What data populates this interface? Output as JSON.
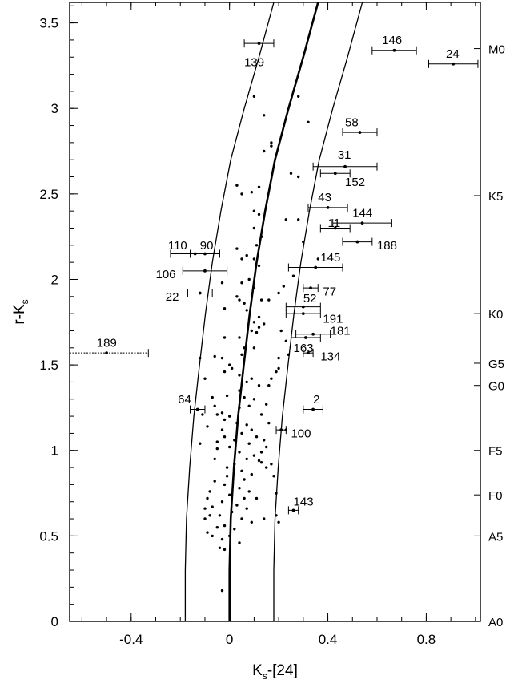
{
  "chart_data": {
    "type": "scatter",
    "xlabel": {
      "main": "K",
      "sub": "s",
      "rest": "-[24]"
    },
    "ylabel": {
      "main": "r-K",
      "sub": "s"
    },
    "xlim": [
      -0.65,
      1.02
    ],
    "ylim": [
      0,
      3.62
    ],
    "x_ticks": [
      -0.4,
      0,
      0.4,
      0.8
    ],
    "x_tick_labels": [
      "-0.4",
      "0",
      "0.4",
      "0.8"
    ],
    "y_ticks": [
      0,
      0.5,
      1,
      1.5,
      2,
      2.5,
      3,
      3.5
    ],
    "y_tick_labels": [
      "0",
      "0.5",
      "1",
      "1.5",
      "2",
      "2.5",
      "3",
      "3.5"
    ],
    "spectral_types": [
      {
        "label": "A0",
        "y": 0.0
      },
      {
        "label": "A5",
        "y": 0.5
      },
      {
        "label": "F0",
        "y": 0.74
      },
      {
        "label": "F5",
        "y": 1.0
      },
      {
        "label": "G0",
        "y": 1.38
      },
      {
        "label": "G5",
        "y": 1.51
      },
      {
        "label": "K0",
        "y": 1.8
      },
      {
        "label": "K5",
        "y": 2.49
      },
      {
        "label": "M0",
        "y": 3.35
      }
    ],
    "main_curve": [
      [
        0.0,
        0
      ],
      [
        0.0,
        0.3
      ],
      [
        0.005,
        0.6
      ],
      [
        0.018,
        0.9
      ],
      [
        0.035,
        1.2
      ],
      [
        0.058,
        1.5
      ],
      [
        0.082,
        1.8
      ],
      [
        0.11,
        2.1
      ],
      [
        0.145,
        2.4
      ],
      [
        0.185,
        2.7
      ],
      [
        0.24,
        3.0
      ],
      [
        0.3,
        3.3
      ],
      [
        0.36,
        3.62
      ]
    ],
    "left_curve": [
      [
        -0.18,
        0
      ],
      [
        -0.18,
        0.3
      ],
      [
        -0.175,
        0.6
      ],
      [
        -0.162,
        0.9
      ],
      [
        -0.145,
        1.2
      ],
      [
        -0.122,
        1.5
      ],
      [
        -0.098,
        1.8
      ],
      [
        -0.07,
        2.1
      ],
      [
        -0.035,
        2.4
      ],
      [
        0.005,
        2.7
      ],
      [
        0.06,
        3.0
      ],
      [
        0.12,
        3.3
      ],
      [
        0.18,
        3.62
      ]
    ],
    "right_curve": [
      [
        0.18,
        0
      ],
      [
        0.18,
        0.3
      ],
      [
        0.185,
        0.6
      ],
      [
        0.198,
        0.9
      ],
      [
        0.215,
        1.2
      ],
      [
        0.238,
        1.5
      ],
      [
        0.262,
        1.8
      ],
      [
        0.29,
        2.1
      ],
      [
        0.325,
        2.4
      ],
      [
        0.365,
        2.7
      ],
      [
        0.42,
        3.0
      ],
      [
        0.48,
        3.3
      ],
      [
        0.54,
        3.62
      ]
    ],
    "labeled_points": [
      {
        "id": "139",
        "x": 0.12,
        "y": 3.38,
        "xerr": 0.06,
        "lx": 0.06,
        "ly": 3.27
      },
      {
        "id": "146",
        "x": 0.67,
        "y": 3.34,
        "xerr": 0.09,
        "lx": 0.62,
        "ly": 3.4
      },
      {
        "id": "24",
        "x": 0.91,
        "y": 3.26,
        "xerr": 0.1,
        "lx": 0.88,
        "ly": 3.32
      },
      {
        "id": "58",
        "x": 0.53,
        "y": 2.86,
        "xerr": 0.07,
        "lx": 0.47,
        "ly": 2.92
      },
      {
        "id": "31",
        "x": 0.47,
        "y": 2.66,
        "xerr": 0.13,
        "lx": 0.44,
        "ly": 2.73
      },
      {
        "id": "152",
        "x": 0.43,
        "y": 2.62,
        "xerr": 0.06,
        "lx": 0.47,
        "ly": 2.57
      },
      {
        "id": "43",
        "x": 0.4,
        "y": 2.42,
        "xerr": 0.08,
        "lx": 0.36,
        "ly": 2.48
      },
      {
        "id": "144",
        "x": 0.54,
        "y": 2.33,
        "xerr": 0.12,
        "lx": 0.5,
        "ly": 2.39
      },
      {
        "id": "11",
        "x": 0.43,
        "y": 2.3,
        "xerr": 0.06,
        "lx": 0.4,
        "ly": 2.33
      },
      {
        "id": "188",
        "x": 0.52,
        "y": 2.22,
        "xerr": 0.06,
        "lx": 0.6,
        "ly": 2.2
      },
      {
        "id": "110",
        "x": -0.14,
        "y": 2.15,
        "xerr": 0.1,
        "lx": -0.25,
        "ly": 2.2
      },
      {
        "id": "90",
        "x": -0.1,
        "y": 2.15,
        "xerr": 0.06,
        "lx": -0.12,
        "ly": 2.2
      },
      {
        "id": "106",
        "x": -0.1,
        "y": 2.05,
        "xerr": 0.09,
        "lx": -0.3,
        "ly": 2.03
      },
      {
        "id": "145",
        "x": 0.35,
        "y": 2.07,
        "xerr": 0.11,
        "lx": 0.37,
        "ly": 2.13
      },
      {
        "id": "22",
        "x": -0.12,
        "y": 1.92,
        "xerr": 0.05,
        "lx": -0.26,
        "ly": 1.9
      },
      {
        "id": "77",
        "x": 0.33,
        "y": 1.95,
        "xerr": 0.03,
        "lx": 0.38,
        "ly": 1.93
      },
      {
        "id": "52",
        "x": 0.3,
        "y": 1.84,
        "xerr": 0.07,
        "lx": 0.3,
        "ly": 1.89
      },
      {
        "id": "191",
        "x": 0.3,
        "y": 1.8,
        "xerr": 0.07,
        "lx": 0.38,
        "ly": 1.77
      },
      {
        "id": "181",
        "x": 0.34,
        "y": 1.68,
        "xerr": 0.07,
        "lx": 0.41,
        "ly": 1.7
      },
      {
        "id": "163",
        "x": 0.31,
        "y": 1.66,
        "xerr": 0.06,
        "lx": 0.26,
        "ly": 1.6
      },
      {
        "id": "134",
        "x": 0.32,
        "y": 1.57,
        "xerr": 0.02,
        "lx": 0.37,
        "ly": 1.55
      },
      {
        "id": "189",
        "x": -0.5,
        "y": 1.57,
        "xerr": 0.17,
        "lx": -0.54,
        "ly": 1.63
      },
      {
        "id": "64",
        "x": -0.13,
        "y": 1.24,
        "xerr": 0.03,
        "lx": -0.21,
        "ly": 1.3
      },
      {
        "id": "2",
        "x": 0.34,
        "y": 1.24,
        "xerr": 0.04,
        "lx": 0.34,
        "ly": 1.3
      },
      {
        "id": "100",
        "x": 0.21,
        "y": 1.12,
        "xerr": 0.02,
        "lx": 0.25,
        "ly": 1.1
      },
      {
        "id": "143",
        "x": 0.26,
        "y": 0.65,
        "xerr": 0.02,
        "lx": 0.26,
        "ly": 0.7
      }
    ],
    "points": [
      [
        0.14,
        2.96
      ],
      [
        0.17,
        2.8
      ],
      [
        0.17,
        2.78
      ],
      [
        0.1,
        3.07
      ],
      [
        0.14,
        2.75
      ],
      [
        0.03,
        2.55
      ],
      [
        0.05,
        2.5
      ],
      [
        0.09,
        2.51
      ],
      [
        0.12,
        2.54
      ],
      [
        0.1,
        2.4
      ],
      [
        0.12,
        2.38
      ],
      [
        0.1,
        2.3
      ],
      [
        0.13,
        2.25
      ],
      [
        0.11,
        2.2
      ],
      [
        0.07,
        2.14
      ],
      [
        0.1,
        2.12
      ],
      [
        0.03,
        2.18
      ],
      [
        0.05,
        2.12
      ],
      [
        0.12,
        2.08
      ],
      [
        0.08,
        2.0
      ],
      [
        0.05,
        1.98
      ],
      [
        0.1,
        1.95
      ],
      [
        -0.03,
        1.98
      ],
      [
        0.03,
        1.9
      ],
      [
        0.06,
        1.86
      ],
      [
        0.04,
        1.88
      ],
      [
        0.07,
        1.82
      ],
      [
        -0.02,
        1.83
      ],
      [
        0.13,
        1.88
      ],
      [
        0.12,
        1.78
      ],
      [
        0.1,
        1.75
      ],
      [
        0.12,
        1.72
      ],
      [
        0.09,
        1.7
      ],
      [
        0.11,
        1.69
      ],
      [
        0.14,
        1.74
      ],
      [
        0.04,
        1.66
      ],
      [
        -0.02,
        1.66
      ],
      [
        0.06,
        1.6
      ],
      [
        0.1,
        1.6
      ],
      [
        0.05,
        1.56
      ],
      [
        -0.06,
        1.55
      ],
      [
        -0.03,
        1.54
      ],
      [
        0.0,
        1.5
      ],
      [
        0.01,
        1.48
      ],
      [
        -0.02,
        1.46
      ],
      [
        0.04,
        1.44
      ],
      [
        0.09,
        1.42
      ],
      [
        0.07,
        1.4
      ],
      [
        0.12,
        1.38
      ],
      [
        0.04,
        1.35
      ],
      [
        -0.01,
        1.32
      ],
      [
        0.06,
        1.31
      ],
      [
        0.1,
        1.3
      ],
      [
        0.08,
        1.26
      ],
      [
        0.04,
        1.25
      ],
      [
        -0.03,
        1.22
      ],
      [
        0.0,
        1.2
      ],
      [
        -0.02,
        1.18
      ],
      [
        0.03,
        1.16
      ],
      [
        0.07,
        1.15
      ],
      [
        0.09,
        1.12
      ],
      [
        0.05,
        1.1
      ],
      [
        0.11,
        1.08
      ],
      [
        0.02,
        1.06
      ],
      [
        0.08,
        1.04
      ],
      [
        0.0,
        1.02
      ],
      [
        -0.05,
        1.01
      ],
      [
        0.04,
        0.99
      ],
      [
        0.1,
        0.97
      ],
      [
        0.07,
        0.95
      ],
      [
        0.12,
        0.94
      ],
      [
        0.02,
        0.92
      ],
      [
        -0.01,
        0.9
      ],
      [
        0.05,
        0.88
      ],
      [
        0.09,
        0.86
      ],
      [
        0.15,
        0.9
      ],
      [
        0.13,
        0.93
      ],
      [
        0.06,
        0.83
      ],
      [
        -0.02,
        0.8
      ],
      [
        0.04,
        0.78
      ],
      [
        0.08,
        0.76
      ],
      [
        0.0,
        0.74
      ],
      [
        0.06,
        0.72
      ],
      [
        0.11,
        0.72
      ],
      [
        -0.03,
        0.7
      ],
      [
        0.03,
        0.68
      ],
      [
        0.07,
        0.66
      ],
      [
        0.01,
        0.64
      ],
      [
        -0.04,
        0.62
      ],
      [
        0.05,
        0.6
      ],
      [
        0.09,
        0.58
      ],
      [
        0.14,
        0.6
      ],
      [
        -0.02,
        0.56
      ],
      [
        0.02,
        0.54
      ],
      [
        0.0,
        0.5
      ],
      [
        -0.03,
        0.48
      ],
      [
        0.04,
        0.46
      ],
      [
        -0.04,
        0.43
      ],
      [
        -0.02,
        0.42
      ],
      [
        -0.03,
        0.18
      ],
      [
        0.23,
        2.35
      ],
      [
        0.28,
        2.35
      ],
      [
        0.3,
        2.22
      ],
      [
        0.36,
        2.12
      ],
      [
        0.28,
        2.6
      ],
      [
        0.25,
        2.62
      ],
      [
        0.32,
        2.92
      ],
      [
        0.28,
        3.07
      ],
      [
        0.21,
        1.7
      ],
      [
        0.24,
        1.56
      ],
      [
        0.2,
        1.48
      ],
      [
        0.19,
        1.46
      ],
      [
        0.2,
        1.54
      ],
      [
        0.23,
        1.64
      ],
      [
        0.16,
        1.88
      ],
      [
        0.22,
        1.96
      ],
      [
        0.2,
        1.92
      ],
      [
        0.26,
        2.02
      ],
      [
        0.23,
        1.12
      ],
      [
        0.19,
        0.75
      ],
      [
        0.17,
        0.92
      ],
      [
        0.18,
        0.85
      ],
      [
        0.19,
        0.62
      ],
      [
        0.2,
        0.58
      ],
      [
        -0.07,
        1.31
      ],
      [
        -0.06,
        1.26
      ],
      [
        -0.09,
        1.14
      ],
      [
        -0.05,
        1.21
      ],
      [
        -0.08,
        0.76
      ],
      [
        -0.06,
        0.82
      ],
      [
        -0.09,
        0.72
      ],
      [
        -0.08,
        0.62
      ],
      [
        -0.07,
        0.67
      ],
      [
        -0.1,
        0.66
      ],
      [
        -0.05,
        0.55
      ],
      [
        -0.09,
        0.52
      ],
      [
        -0.07,
        0.5
      ],
      [
        -0.1,
        0.6
      ],
      [
        -0.11,
        1.21
      ],
      [
        -0.12,
        1.04
      ],
      [
        -0.12,
        1.54
      ],
      [
        -0.1,
        1.42
      ],
      [
        0.17,
        1.42
      ],
      [
        0.16,
        1.38
      ],
      [
        0.15,
        1.27
      ],
      [
        0.13,
        1.21
      ],
      [
        0.16,
        1.16
      ],
      [
        0.15,
        1.02
      ],
      [
        0.13,
        0.99
      ],
      [
        0.14,
        1.06
      ],
      [
        -0.03,
        1.12
      ],
      [
        -0.02,
        1.08
      ],
      [
        -0.01,
        0.85
      ],
      [
        -0.06,
        0.95
      ],
      [
        -0.05,
        1.05
      ]
    ]
  }
}
